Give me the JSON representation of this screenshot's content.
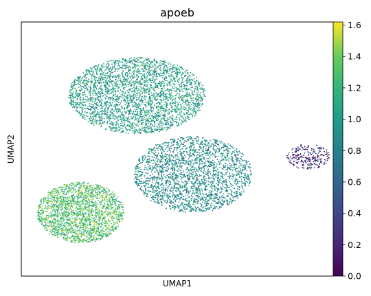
{
  "chart_data": {
    "type": "scatter",
    "title": "apoeb",
    "xlabel": "UMAP1",
    "ylabel": "UMAP2",
    "x_ticks": [],
    "y_ticks": [],
    "grid": false,
    "colorbar": {
      "colormap": "viridis",
      "range": [
        0.0,
        1.62
      ],
      "tick_values": [
        0.0,
        0.2,
        0.4,
        0.6,
        0.8,
        1.0,
        1.2,
        1.4,
        1.6
      ],
      "tick_labels": [
        "0.0",
        "0.2",
        "0.4",
        "0.6",
        "0.8",
        "1.0",
        "1.2",
        "1.4",
        "1.6"
      ]
    },
    "point_groups": [
      {
        "name": "upper lobe",
        "center": [
          0.37,
          0.71
        ],
        "size": [
          0.22,
          0.15
        ],
        "count": 3200,
        "expr_mean": 1.0
      },
      {
        "name": "lower-right mass",
        "center": [
          0.55,
          0.4
        ],
        "size": [
          0.19,
          0.15
        ],
        "count": 3000,
        "expr_mean": 0.87
      },
      {
        "name": "lower-left mass",
        "center": [
          0.19,
          0.25
        ],
        "size": [
          0.14,
          0.12
        ],
        "count": 2200,
        "expr_mean": 1.27
      },
      {
        "name": "right island",
        "center": [
          0.92,
          0.47
        ],
        "size": [
          0.07,
          0.05
        ],
        "count": 260,
        "expr_mean": 0.25
      }
    ]
  }
}
